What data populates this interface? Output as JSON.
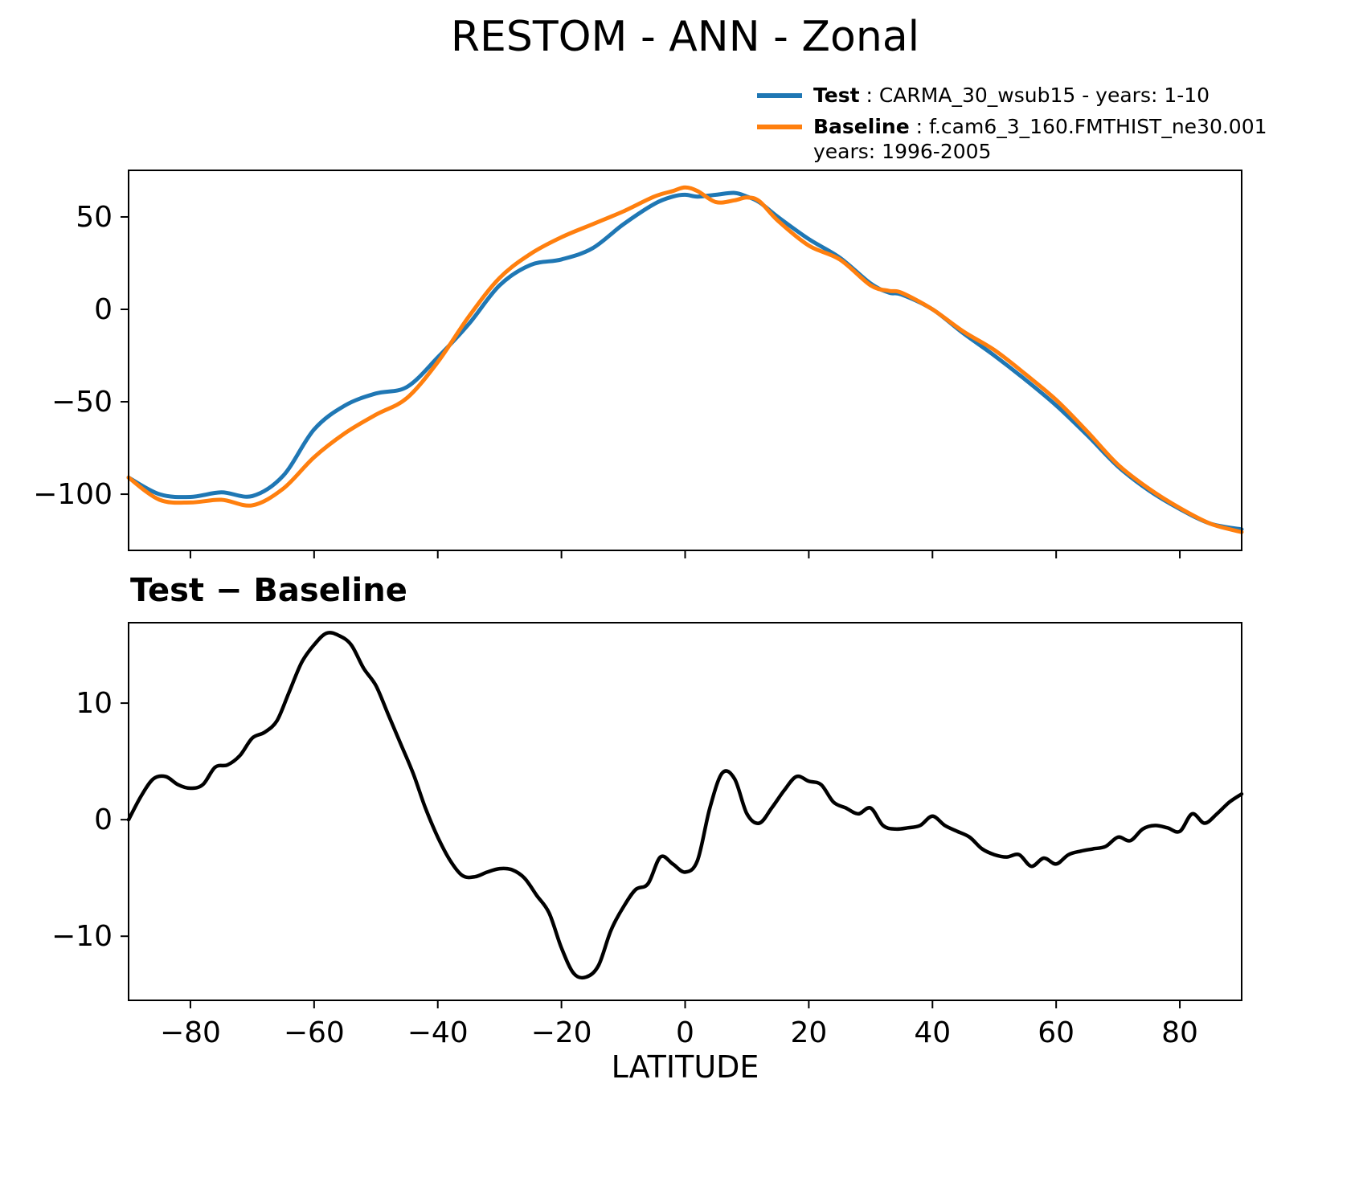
{
  "figure": {
    "title": "RESTOM - ANN - Zonal",
    "subtitle": "Test − Baseline",
    "xlabel": "LATITUDE",
    "legend": {
      "test_label": "Test",
      "test_desc": " : CARMA_30_wsub15 - years: 1-10",
      "baseline_label": "Baseline",
      "baseline_desc": " : f.cam6_3_160.FMTHIST_ne30.001",
      "baseline_years": "years: 1996-2005"
    },
    "colors": {
      "test": "#1f77b4",
      "baseline": "#ff7f0e",
      "diff": "#000000"
    }
  },
  "chart_data": [
    {
      "type": "line",
      "title": "RESTOM - ANN - Zonal",
      "xlabel": "",
      "ylabel": "",
      "xlim": [
        -90,
        90
      ],
      "ylim": [
        -130.4,
        75.2
      ],
      "xticks": [
        -80,
        -60,
        -40,
        -20,
        0,
        20,
        40,
        60,
        80
      ],
      "yticks": [
        50,
        0,
        -50,
        -100
      ],
      "show_x_labels": false,
      "legend_position": "upper right, above axes",
      "grid": false,
      "x": [
        -90,
        -85,
        -80,
        -75,
        -70,
        -65,
        -60,
        -55,
        -50,
        -45,
        -40,
        -35,
        -30,
        -25,
        -20,
        -15,
        -10,
        -5,
        -2,
        0,
        2,
        5,
        8,
        10,
        12,
        15,
        20,
        25,
        30,
        33,
        35,
        40,
        45,
        50,
        55,
        60,
        65,
        70,
        75,
        80,
        85,
        90
      ],
      "series": [
        {
          "name": "Test",
          "color": "#1f77b4",
          "width": 5,
          "values": [
            -91,
            -100,
            -101.5,
            -99,
            -101,
            -90,
            -65,
            -52,
            -45.5,
            -42,
            -26,
            -8,
            13,
            24,
            27,
            33,
            46,
            57,
            61,
            62,
            61,
            62,
            63,
            61,
            58,
            50,
            38,
            28,
            14,
            9,
            8,
            0,
            -13,
            -25,
            -38,
            -52,
            -68,
            -85,
            -98,
            -108,
            -116,
            -119
          ]
        },
        {
          "name": "Baseline",
          "color": "#ff7f0e",
          "width": 5,
          "values": [
            -91,
            -103,
            -104.5,
            -103,
            -106,
            -97,
            -80,
            -67,
            -57,
            -48,
            -28.5,
            -4,
            17,
            30,
            39,
            46,
            53,
            61,
            64,
            66,
            64,
            58,
            59,
            60.5,
            58.5,
            48,
            34.5,
            27,
            13,
            10,
            9,
            0,
            -12,
            -22,
            -35,
            -49,
            -66,
            -84,
            -97,
            -107.5,
            -116,
            -120.5
          ]
        }
      ]
    },
    {
      "type": "line",
      "title": "Test − Baseline",
      "xlabel": "LATITUDE",
      "ylabel": "",
      "xlim": [
        -90,
        90
      ],
      "ylim": [
        -15.5,
        16.9
      ],
      "xticks": [
        -80,
        -60,
        -40,
        -20,
        0,
        20,
        40,
        60,
        80
      ],
      "yticks": [
        10,
        0,
        -10
      ],
      "show_x_labels": true,
      "grid": false,
      "x": [
        -90,
        -88,
        -86,
        -84,
        -82,
        -80,
        -78,
        -76,
        -74,
        -72,
        -70,
        -68,
        -66,
        -64,
        -62,
        -60,
        -58,
        -56,
        -54,
        -52,
        -50,
        -48,
        -46,
        -44,
        -42,
        -40,
        -38,
        -36,
        -34,
        -32,
        -30,
        -28,
        -26,
        -24,
        -22,
        -20,
        -18,
        -16,
        -14,
        -12,
        -10,
        -8,
        -6,
        -4,
        -2,
        0,
        2,
        4,
        6,
        8,
        10,
        12,
        14,
        16,
        18,
        20,
        22,
        24,
        26,
        28,
        30,
        32,
        34,
        36,
        38,
        40,
        42,
        44,
        46,
        48,
        50,
        52,
        54,
        56,
        58,
        60,
        62,
        64,
        66,
        68,
        70,
        72,
        74,
        76,
        78,
        80,
        82,
        84,
        86,
        88,
        90
      ],
      "series": [
        {
          "name": "Test - Baseline",
          "color": "#000000",
          "width": 4.5,
          "values": [
            0,
            2,
            3.5,
            3.7,
            3,
            2.7,
            3,
            4.5,
            4.7,
            5.5,
            7,
            7.5,
            8.5,
            11,
            13.5,
            15,
            16,
            15.8,
            15,
            13,
            11.5,
            9,
            6.5,
            4,
            1,
            -1.5,
            -3.5,
            -4.8,
            -4.9,
            -4.5,
            -4.2,
            -4.3,
            -5,
            -6.5,
            -8,
            -11,
            -13.2,
            -13.5,
            -12.5,
            -9.5,
            -7.5,
            -6,
            -5.5,
            -3.2,
            -3.8,
            -4.5,
            -3.5,
            1,
            4,
            3.5,
            0.5,
            -0.3,
            1,
            2.5,
            3.7,
            3.3,
            3,
            1.5,
            1,
            0.5,
            1,
            -0.5,
            -0.8,
            -0.7,
            -0.5,
            0.3,
            -0.5,
            -1,
            -1.5,
            -2.5,
            -3,
            -3.2,
            -3,
            -4,
            -3.3,
            -3.8,
            -3,
            -2.7,
            -2.5,
            -2.3,
            -1.5,
            -1.8,
            -0.8,
            -0.5,
            -0.7,
            -1,
            0.5,
            -0.3,
            0.5,
            1.5,
            2.2
          ]
        }
      ]
    }
  ]
}
